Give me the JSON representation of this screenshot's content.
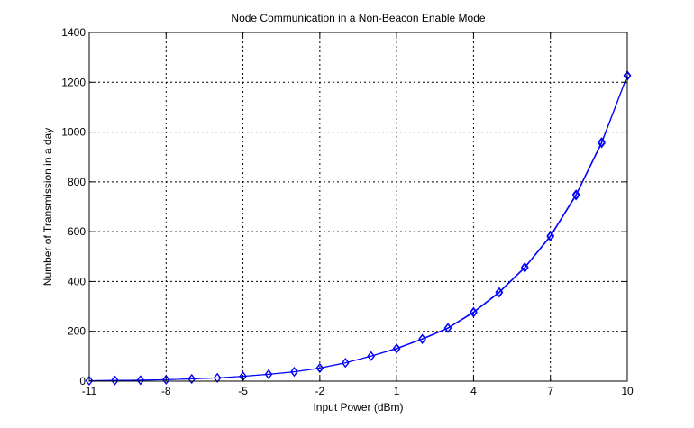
{
  "chart_data": {
    "type": "line",
    "title": "Node Communication in a Non-Beacon Enable Mode",
    "xlabel": "Input Power (dBm)",
    "ylabel": "Number of Transmission  in a day",
    "xlim": [
      -11,
      10
    ],
    "ylim": [
      0,
      1400
    ],
    "xticks": [
      -11,
      -8,
      -5,
      -2,
      1,
      4,
      7,
      10
    ],
    "yticks": [
      0,
      200,
      400,
      600,
      800,
      1000,
      1200,
      1400
    ],
    "grid": true,
    "marker": "diamond",
    "colors": {
      "line": "#0000ff",
      "marker": "#0000ff",
      "grid": "#000000",
      "axes": "#000000",
      "background": "#ffffff"
    },
    "series": [
      {
        "x": [
          -11,
          -10,
          -9,
          -8,
          -7,
          -6,
          -5,
          -4,
          -3,
          -2,
          -1,
          0,
          1,
          2,
          3,
          4,
          5,
          6,
          7,
          8,
          9,
          10
        ],
        "y": [
          2,
          3,
          4,
          6,
          9,
          13,
          19,
          27,
          37,
          52,
          73,
          100,
          130,
          168,
          212,
          275,
          355,
          455,
          580,
          745,
          955,
          1225
        ]
      },
      {
        "x": [
          -11,
          -10,
          -9,
          -8,
          -7,
          -6,
          -5,
          -4,
          -3,
          -2,
          -1,
          0,
          1,
          2,
          3,
          4,
          5,
          6,
          7,
          8,
          9,
          10
        ],
        "y": [
          2,
          3,
          4,
          6,
          9,
          13,
          20,
          28,
          38,
          53,
          74,
          101,
          132,
          170,
          214,
          278,
          358,
          458,
          584,
          750,
          960,
          1228
        ]
      }
    ]
  }
}
